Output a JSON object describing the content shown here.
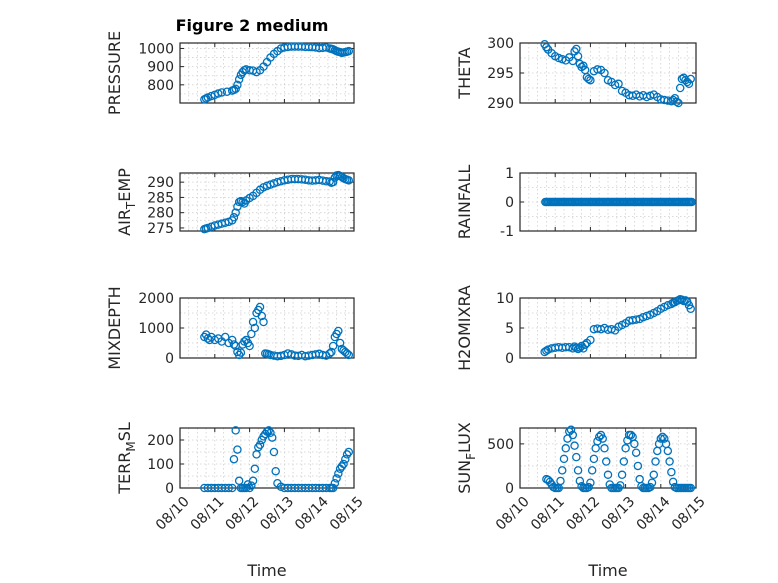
{
  "figure_title": "Figure 2 medium",
  "marker_color": "#0072BD",
  "chart_data": [
    {
      "type": "scatter",
      "title": "Figure 2 medium",
      "ylabel": "PRESSURE",
      "xlabel": "",
      "xlim": [
        0,
        5
      ],
      "ylim": [
        700,
        1030
      ],
      "yticks": [
        800,
        900,
        1000
      ],
      "yticklabels": [
        "800",
        "900",
        "1000"
      ],
      "xtick_labels_shown": false,
      "series": [
        {
          "x": [
            0.7,
            0.75,
            0.8,
            0.9,
            1.0,
            1.1,
            1.2,
            1.35,
            1.5,
            1.55,
            1.6,
            1.65,
            1.7,
            1.75,
            1.8,
            1.85,
            1.9,
            2.0,
            2.1,
            2.2,
            2.3,
            2.4,
            2.5,
            2.6,
            2.7,
            2.8,
            2.9,
            3.0,
            3.1,
            3.2,
            3.3,
            3.4,
            3.5,
            3.6,
            3.7,
            3.8,
            3.9,
            4.0,
            4.1,
            4.2,
            4.3,
            4.35,
            4.4,
            4.45,
            4.5,
            4.55,
            4.6,
            4.65,
            4.7,
            4.75,
            4.8,
            4.85
          ],
          "y": [
            720,
            725,
            730,
            738,
            745,
            752,
            758,
            762,
            768,
            772,
            778,
            800,
            830,
            855,
            870,
            880,
            885,
            880,
            878,
            870,
            880,
            900,
            925,
            950,
            970,
            985,
            1000,
            1005,
            1008,
            1010,
            1010,
            1010,
            1010,
            1008,
            1008,
            1007,
            1005,
            1002,
            1003,
            1005,
            1000,
            998,
            995,
            990,
            985,
            982,
            980,
            976,
            978,
            980,
            982,
            985
          ]
        }
      ]
    },
    {
      "type": "scatter",
      "title": "",
      "ylabel": "THETA",
      "xlabel": "",
      "xlim": [
        0,
        5
      ],
      "ylim": [
        290,
        300
      ],
      "yticks": [
        290,
        295,
        300
      ],
      "yticklabels": [
        "290",
        "295",
        "300"
      ],
      "xtick_labels_shown": false,
      "series": [
        {
          "x": [
            0.7,
            0.75,
            0.8,
            0.9,
            1.0,
            1.1,
            1.2,
            1.3,
            1.4,
            1.5,
            1.55,
            1.6,
            1.65,
            1.7,
            1.75,
            1.8,
            1.85,
            1.9,
            1.95,
            2.0,
            2.1,
            2.2,
            2.3,
            2.4,
            2.5,
            2.6,
            2.7,
            2.8,
            2.9,
            3.0,
            3.1,
            3.2,
            3.3,
            3.4,
            3.5,
            3.6,
            3.7,
            3.8,
            3.9,
            4.0,
            4.1,
            4.2,
            4.3,
            4.35,
            4.4,
            4.45,
            4.5,
            4.55,
            4.6,
            4.65,
            4.7,
            4.75,
            4.8,
            4.85
          ],
          "y": [
            299.8,
            299.3,
            298.9,
            298.3,
            297.8,
            297.5,
            297.3,
            297.1,
            297.6,
            297.0,
            298.6,
            299.0,
            297.8,
            296.5,
            296.0,
            296.2,
            295.5,
            294.3,
            294.0,
            293.8,
            295.3,
            295.6,
            295.5,
            295.0,
            293.8,
            293.5,
            293.0,
            293.2,
            292.0,
            291.7,
            291.3,
            291.2,
            291.4,
            291.1,
            291.3,
            291.0,
            291.2,
            291.4,
            291.0,
            290.6,
            290.5,
            290.4,
            290.3,
            290.5,
            290.8,
            290.2,
            290.0,
            292.5,
            294.0,
            294.2,
            293.8,
            293.5,
            293.2,
            294.0
          ]
        }
      ]
    },
    {
      "type": "scatter",
      "title": "",
      "ylabel": "AIR_TEMP",
      "xlabel": "",
      "xlim": [
        0,
        5
      ],
      "ylim": [
        274,
        293
      ],
      "yticks": [
        275,
        280,
        285,
        290
      ],
      "yticklabels": [
        "275",
        "280",
        "285",
        "290"
      ],
      "xtick_labels_shown": false,
      "series": [
        {
          "x": [
            0.7,
            0.75,
            0.8,
            0.9,
            1.0,
            1.1,
            1.2,
            1.3,
            1.4,
            1.5,
            1.55,
            1.6,
            1.65,
            1.7,
            1.75,
            1.8,
            1.85,
            1.9,
            2.0,
            2.1,
            2.2,
            2.3,
            2.4,
            2.5,
            2.6,
            2.7,
            2.8,
            2.9,
            3.0,
            3.1,
            3.2,
            3.3,
            3.4,
            3.5,
            3.6,
            3.7,
            3.8,
            3.9,
            4.0,
            4.1,
            4.2,
            4.3,
            4.35,
            4.4,
            4.45,
            4.5,
            4.55,
            4.6,
            4.65,
            4.7,
            4.75,
            4.8,
            4.85
          ],
          "y": [
            274.6,
            274.8,
            275.0,
            275.4,
            275.8,
            276.1,
            276.4,
            276.7,
            277.0,
            277.5,
            278.5,
            280.0,
            282.0,
            283.5,
            283.8,
            283.5,
            283.0,
            284.0,
            284.8,
            285.5,
            286.5,
            287.5,
            288.3,
            288.8,
            289.2,
            289.6,
            290.0,
            290.3,
            290.6,
            290.8,
            291.0,
            291.0,
            291.0,
            290.9,
            290.8,
            290.6,
            290.5,
            290.6,
            290.7,
            290.5,
            290.3,
            290.2,
            289.8,
            290.0,
            291.5,
            292.2,
            292.3,
            292.0,
            291.7,
            291.3,
            291.0,
            290.8,
            290.6
          ]
        }
      ]
    },
    {
      "type": "scatter",
      "title": "",
      "ylabel": "RAINFALL",
      "xlabel": "",
      "xlim": [
        0,
        5
      ],
      "ylim": [
        -1,
        1
      ],
      "yticks": [
        -1,
        0,
        1
      ],
      "yticklabels": [
        "-1",
        "0",
        "1"
      ],
      "xtick_labels_shown": false,
      "series": [
        {
          "x_start": 0.72,
          "x_end": 4.9,
          "x_step": 0.04,
          "constant_y": 0
        }
      ]
    },
    {
      "type": "scatter",
      "title": "",
      "ylabel": "MIXDEPTH",
      "xlabel": "",
      "xlim": [
        0,
        5
      ],
      "ylim": [
        0,
        2000
      ],
      "yticks": [
        0,
        1000,
        2000
      ],
      "yticklabels": [
        "0",
        "1000",
        "2000"
      ],
      "xtick_labels_shown": false,
      "series": [
        {
          "x": [
            0.7,
            0.75,
            0.8,
            0.85,
            0.9,
            1.0,
            1.1,
            1.2,
            1.3,
            1.4,
            1.5,
            1.55,
            1.6,
            1.65,
            1.7,
            1.75,
            1.8,
            1.85,
            1.9,
            1.95,
            2.0,
            2.05,
            2.1,
            2.15,
            2.2,
            2.25,
            2.3,
            2.35,
            2.4,
            2.45,
            2.5,
            2.55,
            2.6,
            2.7,
            2.8,
            2.9,
            3.0,
            3.1,
            3.2,
            3.3,
            3.4,
            3.5,
            3.6,
            3.7,
            3.8,
            3.9,
            4.0,
            4.1,
            4.2,
            4.3,
            4.35,
            4.4,
            4.45,
            4.5,
            4.55,
            4.6,
            4.65,
            4.7,
            4.75,
            4.8,
            4.85
          ],
          "y": [
            700,
            780,
            650,
            600,
            700,
            600,
            650,
            550,
            700,
            500,
            600,
            450,
            400,
            200,
            100,
            180,
            450,
            550,
            600,
            500,
            400,
            800,
            1200,
            1000,
            1500,
            1600,
            1700,
            1400,
            1200,
            150,
            140,
            120,
            100,
            80,
            60,
            70,
            100,
            150,
            120,
            80,
            70,
            100,
            60,
            80,
            100,
            120,
            140,
            100,
            80,
            150,
            200,
            400,
            700,
            800,
            900,
            500,
            300,
            250,
            200,
            150,
            100
          ]
        }
      ]
    },
    {
      "type": "scatter",
      "title": "",
      "ylabel": "H2OMIXRA",
      "xlabel": "",
      "xlim": [
        0,
        5
      ],
      "ylim": [
        0,
        10
      ],
      "yticks": [
        0,
        5,
        10
      ],
      "yticklabels": [
        "0",
        "5",
        "10"
      ],
      "xtick_labels_shown": false,
      "series": [
        {
          "x": [
            0.7,
            0.75,
            0.8,
            0.9,
            1.0,
            1.1,
            1.2,
            1.3,
            1.4,
            1.5,
            1.55,
            1.6,
            1.65,
            1.7,
            1.75,
            1.8,
            1.85,
            1.9,
            2.0,
            2.1,
            2.2,
            2.3,
            2.4,
            2.5,
            2.6,
            2.7,
            2.8,
            2.9,
            3.0,
            3.1,
            3.2,
            3.3,
            3.4,
            3.5,
            3.6,
            3.7,
            3.8,
            3.9,
            4.0,
            4.1,
            4.2,
            4.3,
            4.35,
            4.4,
            4.45,
            4.5,
            4.55,
            4.6,
            4.65,
            4.7,
            4.75,
            4.8,
            4.85
          ],
          "y": [
            1.0,
            1.2,
            1.4,
            1.6,
            1.7,
            1.8,
            1.7,
            1.8,
            1.8,
            1.6,
            1.9,
            1.7,
            1.5,
            1.7,
            2.0,
            1.6,
            2.2,
            2.5,
            3.0,
            4.8,
            4.9,
            4.8,
            5.0,
            4.7,
            4.8,
            4.6,
            5.2,
            5.5,
            5.8,
            6.2,
            6.3,
            6.4,
            6.5,
            6.8,
            7.0,
            7.2,
            7.5,
            7.8,
            8.2,
            8.5,
            8.8,
            9.0,
            9.2,
            9.3,
            9.5,
            9.6,
            9.8,
            9.7,
            9.5,
            9.6,
            9.4,
            8.8,
            8.2
          ]
        }
      ]
    },
    {
      "type": "scatter",
      "title": "",
      "ylabel": "TERR_MSL",
      "xlabel": "Time",
      "xlim": [
        0,
        5
      ],
      "ylim": [
        0,
        250
      ],
      "yticks": [
        0,
        100,
        200
      ],
      "yticklabels": [
        "0",
        "100",
        "200"
      ],
      "xticks": [
        0,
        1,
        2,
        3,
        4,
        5
      ],
      "xticklabels": [
        "08/10",
        "08/11",
        "08/12",
        "08/13",
        "08/14",
        "08/15"
      ],
      "series": [
        {
          "x": [
            0.7,
            0.8,
            0.9,
            1.0,
            1.1,
            1.2,
            1.3,
            1.4,
            1.5,
            1.55,
            1.6,
            1.65,
            1.7,
            1.75,
            1.8,
            1.85,
            1.9,
            1.95,
            2.0,
            2.05,
            2.1,
            2.15,
            2.2,
            2.25,
            2.3,
            2.35,
            2.4,
            2.45,
            2.5,
            2.55,
            2.6,
            2.65,
            2.7,
            2.75,
            2.8,
            2.9,
            3.0,
            3.1,
            3.2,
            3.3,
            3.4,
            3.5,
            3.6,
            3.7,
            3.8,
            3.9,
            4.0,
            4.1,
            4.2,
            4.3,
            4.35,
            4.4,
            4.45,
            4.5,
            4.55,
            4.6,
            4.65,
            4.7,
            4.75,
            4.8,
            4.85
          ],
          "y": [
            0,
            0,
            0,
            0,
            0,
            0,
            0,
            0,
            0,
            120,
            240,
            160,
            30,
            0,
            0,
            0,
            0,
            15,
            0,
            10,
            30,
            80,
            140,
            170,
            180,
            200,
            215,
            225,
            235,
            240,
            230,
            210,
            150,
            70,
            20,
            5,
            0,
            0,
            0,
            0,
            0,
            0,
            0,
            0,
            0,
            0,
            0,
            0,
            0,
            0,
            0,
            0,
            20,
            40,
            60,
            80,
            90,
            100,
            120,
            140,
            150
          ]
        }
      ]
    },
    {
      "type": "scatter",
      "title": "",
      "ylabel": "SUN_FLUX",
      "xlabel": "Time",
      "xlim": [
        0,
        5
      ],
      "ylim": [
        0,
        680
      ],
      "yticks": [
        0,
        500
      ],
      "yticklabels": [
        "0",
        "500"
      ],
      "xticks": [
        0,
        1,
        2,
        3,
        4,
        5
      ],
      "xticklabels": [
        "08/10",
        "08/11",
        "08/12",
        "08/13",
        "08/14",
        "08/15"
      ],
      "series": [
        {
          "x": [
            0.75,
            0.8,
            0.85,
            0.9,
            0.95,
            1.0,
            1.05,
            1.1,
            1.15,
            1.2,
            1.25,
            1.3,
            1.35,
            1.4,
            1.45,
            1.5,
            1.55,
            1.6,
            1.65,
            1.7,
            1.75,
            1.8,
            1.85,
            1.9,
            1.95,
            2.0,
            2.05,
            2.1,
            2.15,
            2.2,
            2.25,
            2.3,
            2.35,
            2.4,
            2.45,
            2.5,
            2.55,
            2.6,
            2.65,
            2.7,
            2.75,
            2.8,
            2.85,
            2.9,
            2.95,
            3.0,
            3.05,
            3.1,
            3.15,
            3.2,
            3.25,
            3.3,
            3.35,
            3.4,
            3.45,
            3.5,
            3.55,
            3.6,
            3.65,
            3.7,
            3.75,
            3.8,
            3.85,
            3.9,
            3.95,
            4.0,
            4.05,
            4.1,
            4.15,
            4.2,
            4.25,
            4.3,
            4.35,
            4.4,
            4.45,
            4.5,
            4.55,
            4.6,
            4.65,
            4.7,
            4.75,
            4.8,
            4.85
          ],
          "y": [
            100,
            90,
            70,
            40,
            10,
            0,
            0,
            0,
            80,
            200,
            330,
            450,
            560,
            640,
            660,
            600,
            480,
            350,
            200,
            80,
            20,
            0,
            0,
            0,
            10,
            60,
            200,
            330,
            450,
            530,
            580,
            600,
            560,
            450,
            300,
            150,
            40,
            0,
            0,
            0,
            0,
            0,
            30,
            150,
            300,
            450,
            540,
            600,
            600,
            580,
            500,
            400,
            250,
            100,
            20,
            0,
            0,
            0,
            0,
            10,
            60,
            150,
            300,
            420,
            500,
            560,
            580,
            560,
            500,
            420,
            300,
            180,
            70,
            10,
            0,
            0,
            0,
            0,
            0,
            0,
            0,
            0,
            0
          ]
        }
      ]
    }
  ]
}
